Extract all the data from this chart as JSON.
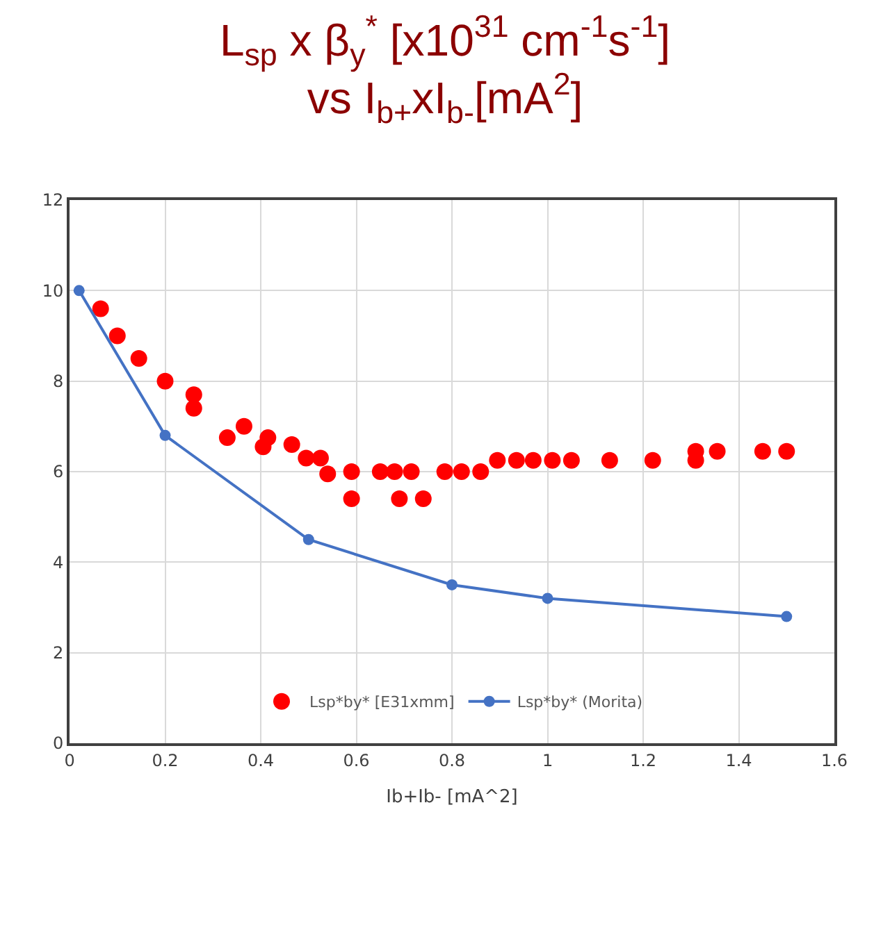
{
  "chart_data": {
    "type": "scatter",
    "title": "L$_{sp}$ x β$_{y}$$^{*}$ [x10$^{31}$ cm$^{-1}$s$^{-1}$]\nvs I$_{b+}$xI$_{b-}$[mA$^{2}$]",
    "xlabel": "Ib+Ib- [mA^2]",
    "xlim": [
      0,
      1.6
    ],
    "xticks": [
      0,
      0.2,
      0.4,
      0.6,
      0.8,
      1,
      1.2,
      1.4,
      1.6
    ],
    "ylim": [
      0,
      12
    ],
    "yticks": [
      0,
      2,
      4,
      6,
      8,
      10,
      12
    ],
    "grid": true,
    "legend": "bottom",
    "series": [
      {
        "name": "Lsp*by* [E31xmm]",
        "color": "#ff0000",
        "marker": "circle",
        "x": [
          0.065,
          0.1,
          0.145,
          0.2,
          0.26,
          0.26,
          0.33,
          0.365,
          0.405,
          0.415,
          0.465,
          0.495,
          0.525,
          0.54,
          0.59,
          0.59,
          0.65,
          0.68,
          0.69,
          0.715,
          0.74,
          0.785,
          0.82,
          0.86,
          0.895,
          0.935,
          0.97,
          1.01,
          1.05,
          1.13,
          1.22,
          1.31,
          1.31,
          1.355,
          1.45,
          1.5
        ],
        "values": [
          9.6,
          9.0,
          8.5,
          8.0,
          7.7,
          7.4,
          6.75,
          7.0,
          6.55,
          6.75,
          6.6,
          6.3,
          6.3,
          5.95,
          6.0,
          5.4,
          6.0,
          6.0,
          5.4,
          6.0,
          5.4,
          6.0,
          6.0,
          6.0,
          6.25,
          6.25,
          6.25,
          6.25,
          6.25,
          6.25,
          6.25,
          6.25,
          6.45,
          6.45,
          6.45,
          6.45
        ]
      },
      {
        "name": "Lsp*by* (Morita)",
        "color": "#4472c4",
        "type": "line",
        "marker": "circle",
        "x": [
          0.02,
          0.2,
          0.5,
          0.8,
          1.0,
          1.5
        ],
        "values": [
          10.0,
          6.8,
          4.5,
          3.5,
          3.2,
          2.8
        ]
      }
    ]
  }
}
